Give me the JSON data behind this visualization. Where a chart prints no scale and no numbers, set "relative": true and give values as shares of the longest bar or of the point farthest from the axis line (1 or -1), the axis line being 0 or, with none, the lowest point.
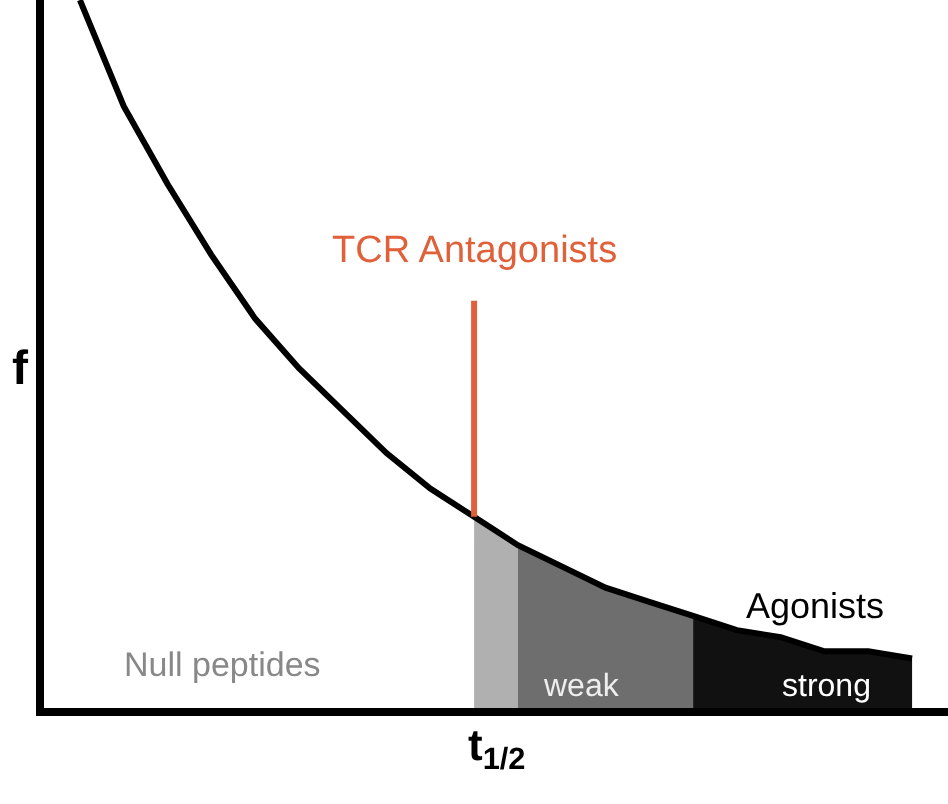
{
  "chart_data": {
    "type": "line",
    "relative": true,
    "xlabel": "t$_{1/2}$",
    "ylabel": "f",
    "categories": [
      null,
      null,
      null,
      null,
      null,
      null,
      null,
      null,
      null,
      null,
      null,
      null,
      null,
      null,
      null,
      null,
      null,
      null,
      null,
      null
    ],
    "series": [
      {
        "type": "area",
        "color": "#b0b0b0",
        "values": [
          null,
          null,
          null,
          null,
          null,
          null,
          null,
          null,
          null,
          0.27,
          0.23,
          null,
          null,
          null,
          null,
          null,
          null,
          null,
          null,
          null
        ]
      },
      {
        "type": "area",
        "color": "#6e6e6e",
        "values": [
          null,
          null,
          null,
          null,
          null,
          null,
          null,
          null,
          null,
          null,
          0.23,
          0.2,
          0.17,
          0.15,
          0.13,
          null,
          null,
          null,
          null,
          null
        ]
      },
      {
        "type": "area",
        "color": "#111111",
        "values": [
          null,
          null,
          null,
          null,
          null,
          null,
          null,
          null,
          null,
          null,
          null,
          null,
          null,
          null,
          0.13,
          0.11,
          0.1,
          0.08,
          0.08,
          0.07
        ]
      },
      {
        "color": "#000000",
        "values": [
          1.0,
          0.85,
          0.74,
          0.64,
          0.55,
          0.48,
          0.42,
          0.36,
          0.31,
          0.27,
          0.23,
          0.2,
          0.17,
          0.15,
          0.13,
          0.11,
          0.1,
          0.08,
          0.08,
          0.07
        ]
      }
    ],
    "annotations": [
      {
        "text": "TCR Antagonists",
        "y": 0.27
      },
      "Agonists",
      "Null peptides",
      "weak",
      "strong"
    ],
    "marker": "none",
    "line_style": "solid"
  }
}
